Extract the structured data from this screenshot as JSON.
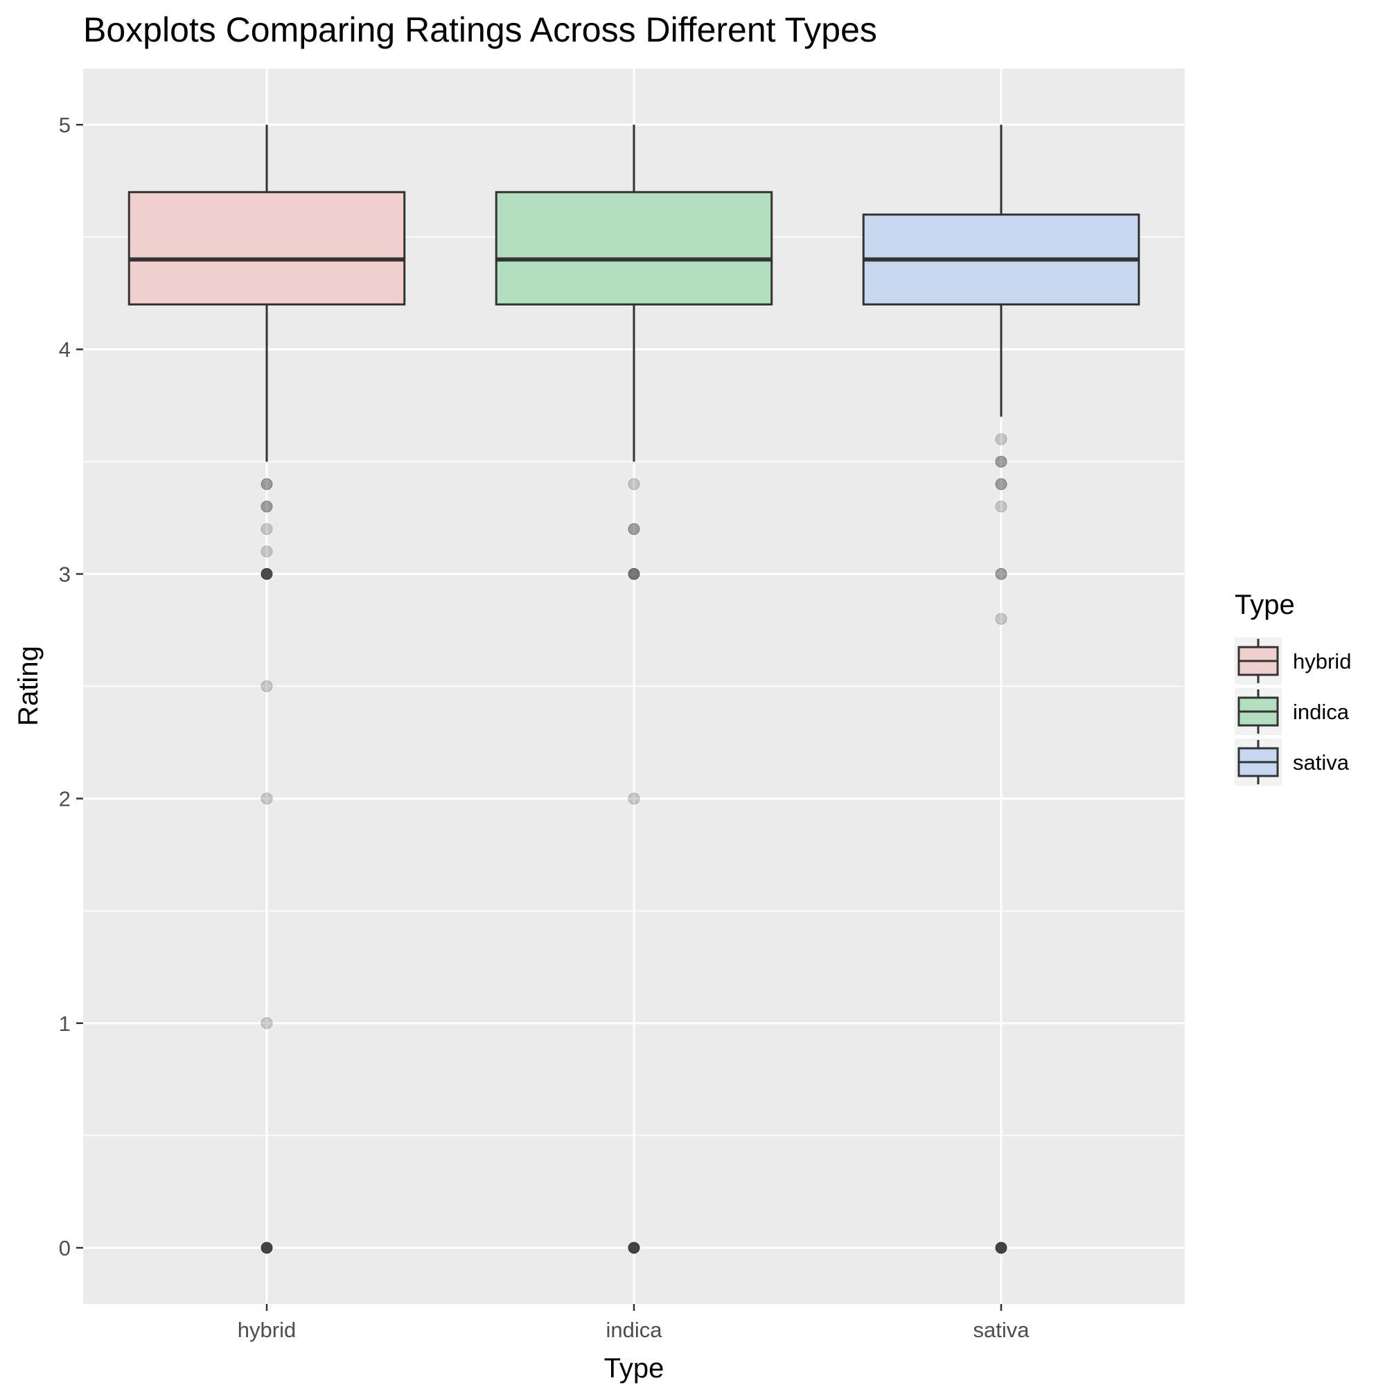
{
  "chart_data": {
    "type": "boxplot",
    "title": "Boxplots Comparing Ratings Across Different Types",
    "xlabel": "Type",
    "ylabel": "Rating",
    "ylim": [
      -0.25,
      5.25
    ],
    "y_ticks": [
      0,
      1,
      2,
      3,
      4,
      5
    ],
    "categories": [
      "hybrid",
      "indica",
      "sativa"
    ],
    "legend": {
      "title": "Type",
      "placement": "right",
      "entries": [
        "hybrid",
        "indica",
        "sativa"
      ]
    },
    "grid": true,
    "series": [
      {
        "category": "hybrid",
        "color": "#f0cfcd",
        "whisker_low": 3.5,
        "q1": 4.2,
        "median": 4.4,
        "q3": 4.7,
        "whisker_high": 5.0,
        "outliers": [
          {
            "y": 3.4,
            "weight": 2
          },
          {
            "y": 3.3,
            "weight": 2
          },
          {
            "y": 3.2,
            "weight": 1
          },
          {
            "y": 3.1,
            "weight": 1
          },
          {
            "y": 3.0,
            "weight": 4
          },
          {
            "y": 2.5,
            "weight": 1
          },
          {
            "y": 2.0,
            "weight": 1
          },
          {
            "y": 1.0,
            "weight": 1
          },
          {
            "y": 0.0,
            "weight": 6
          }
        ]
      },
      {
        "category": "indica",
        "color": "#b3dfc0",
        "whisker_low": 3.5,
        "q1": 4.2,
        "median": 4.4,
        "q3": 4.7,
        "whisker_high": 5.0,
        "outliers": [
          {
            "y": 3.4,
            "weight": 1
          },
          {
            "y": 3.2,
            "weight": 2
          },
          {
            "y": 3.0,
            "weight": 3
          },
          {
            "y": 2.0,
            "weight": 1
          },
          {
            "y": 0.0,
            "weight": 6
          }
        ]
      },
      {
        "category": "sativa",
        "color": "#c8d7f0",
        "whisker_low": 3.7,
        "q1": 4.2,
        "median": 4.4,
        "q3": 4.6,
        "whisker_high": 5.0,
        "outliers": [
          {
            "y": 3.6,
            "weight": 1
          },
          {
            "y": 3.5,
            "weight": 2
          },
          {
            "y": 3.4,
            "weight": 2
          },
          {
            "y": 3.3,
            "weight": 1
          },
          {
            "y": 3.0,
            "weight": 2
          },
          {
            "y": 2.8,
            "weight": 1
          },
          {
            "y": 0.0,
            "weight": 6
          }
        ]
      }
    ]
  }
}
